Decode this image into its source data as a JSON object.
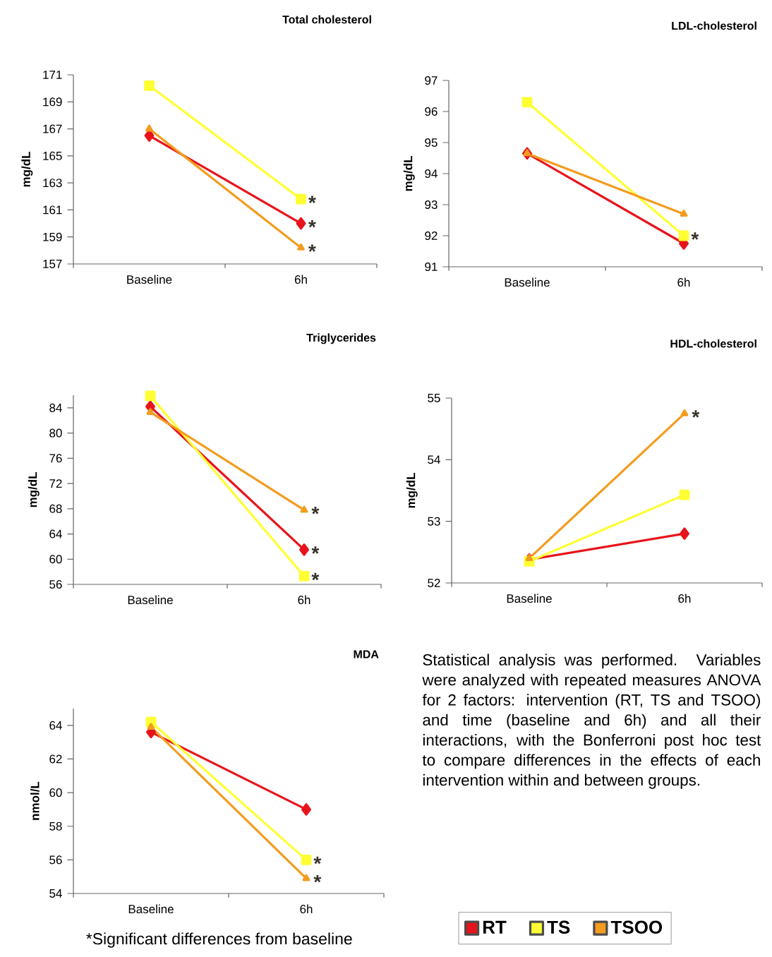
{
  "chart_data": [
    {
      "type": "line",
      "title": "Total cholesterol",
      "ylabel": "mg/dL",
      "categories": [
        "Baseline",
        "6h"
      ],
      "ylim": [
        157,
        171
      ],
      "yticks": [
        157,
        159,
        161,
        163,
        165,
        167,
        169,
        171
      ],
      "series": [
        {
          "color": "#e8141b",
          "marker": "diamond",
          "values": [
            166.5,
            160.0
          ]
        },
        {
          "color": "#ffff33",
          "marker": "square",
          "values": [
            170.2,
            161.8
          ]
        },
        {
          "color": "#f39c1e",
          "marker": "triangle",
          "values": [
            167.0,
            158.2
          ]
        }
      ],
      "annotations": [
        {
          "text": "*",
          "x": "6h",
          "y": 161.8
        },
        {
          "text": "*",
          "x": "6h",
          "y": 160.0
        },
        {
          "text": "*",
          "x": "6h",
          "y": 158.2
        }
      ]
    },
    {
      "type": "line",
      "title": "LDL-cholesterol",
      "ylabel": "mg/dL",
      "categories": [
        "Baseline",
        "6h"
      ],
      "ylim": [
        91,
        97
      ],
      "yticks": [
        91,
        92,
        93,
        94,
        95,
        96,
        97
      ],
      "series": [
        {
          "color": "#e8141b",
          "marker": "diamond",
          "values": [
            94.65,
            91.75
          ]
        },
        {
          "color": "#ffff33",
          "marker": "square",
          "values": [
            96.3,
            92.0
          ]
        },
        {
          "color": "#f39c1e",
          "marker": "triangle",
          "values": [
            94.65,
            92.7
          ]
        }
      ],
      "annotations": [
        {
          "text": "*",
          "x": "6h",
          "y": 92.0
        }
      ]
    },
    {
      "type": "line",
      "title": "Triglycerides",
      "ylabel": "mg/dL",
      "categories": [
        "Baseline",
        "6h"
      ],
      "ylim": [
        56,
        86
      ],
      "yticks": [
        56,
        60,
        64,
        68,
        72,
        76,
        80,
        84
      ],
      "series": [
        {
          "color": "#e8141b",
          "marker": "diamond",
          "values": [
            84.2,
            61.5
          ]
        },
        {
          "color": "#ffff33",
          "marker": "square",
          "values": [
            85.9,
            57.3
          ]
        },
        {
          "color": "#f39c1e",
          "marker": "triangle",
          "values": [
            83.3,
            67.8
          ]
        }
      ],
      "annotations": [
        {
          "text": "*",
          "x": "6h",
          "y": 67.8
        },
        {
          "text": "*",
          "x": "6h",
          "y": 61.5
        },
        {
          "text": "*",
          "x": "6h",
          "y": 57.3
        }
      ]
    },
    {
      "type": "line",
      "title": "HDL-cholesterol",
      "ylabel": "mg/dL",
      "categories": [
        "Baseline",
        "6h"
      ],
      "ylim": [
        52,
        55
      ],
      "yticks": [
        52,
        53,
        54,
        55
      ],
      "series": [
        {
          "color": "#e8141b",
          "marker": "diamond",
          "values": [
            52.38,
            52.8
          ]
        },
        {
          "color": "#ffff33",
          "marker": "square",
          "values": [
            52.35,
            53.43
          ]
        },
        {
          "color": "#f39c1e",
          "marker": "triangle",
          "values": [
            52.4,
            54.75
          ]
        }
      ],
      "annotations": [
        {
          "text": "*",
          "x": "6h",
          "y": 54.75
        }
      ]
    },
    {
      "type": "line",
      "title": "MDA",
      "ylabel": "nmol/L",
      "categories": [
        "Baseline",
        "6h"
      ],
      "ylim": [
        54,
        65
      ],
      "yticks": [
        54,
        56,
        58,
        60,
        62,
        64
      ],
      "legend": "bottom right",
      "series": [
        {
          "name": "RT",
          "color": "#e8141b",
          "marker": "diamond",
          "values": [
            63.6,
            59.0
          ]
        },
        {
          "name": "TS",
          "color": "#ffff33",
          "marker": "square",
          "values": [
            64.2,
            56.0
          ]
        },
        {
          "name": "TSOO",
          "color": "#f39c1e",
          "marker": "triangle",
          "values": [
            63.9,
            54.9
          ]
        }
      ],
      "annotations": [
        {
          "text": "*",
          "x": "6h",
          "y": 56.0
        },
        {
          "text": "*",
          "x": "6h",
          "y": 54.9
        },
        "*Significant differences from baseline"
      ]
    },
    {
      "type": "other",
      "annotations": [
        "Statistical analysis was performed. Variables were analyzed with repeated measures ANOVA for 2 factors: intervention (RT, TS and TSOO) and time (baseline and 6h) and all their interactions, with the Bonferroni post hoc test to compare differences in the effects of each intervention within and between groups."
      ]
    }
  ]
}
